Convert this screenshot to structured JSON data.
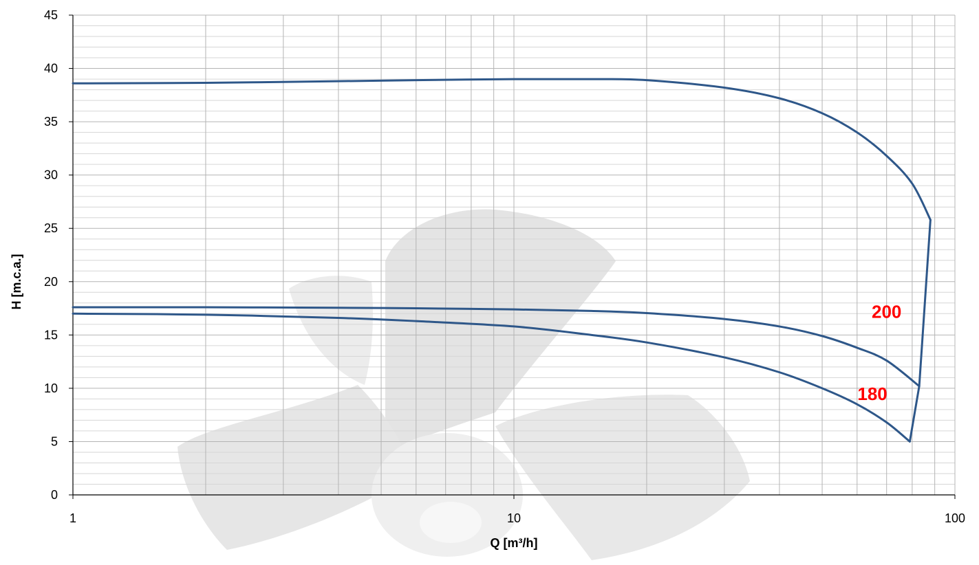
{
  "colors": {
    "series": "#2e5789",
    "curve_label": "#ff0000",
    "minor_grid": "#d6d6d6",
    "major_grid": "#b4b4b4",
    "axis": "#000000",
    "watermark": "#e9e9e9"
  },
  "watermark": {
    "description_icon": "fan-impeller-icon"
  },
  "chart_data": {
    "type": "line",
    "title": "",
    "xlabel": "Q [m³/h]",
    "ylabel": "H [m.c.a.]",
    "xscale": "log",
    "xlim": [
      1,
      100
    ],
    "ylim": [
      0,
      45
    ],
    "x_ticks": [
      1,
      10,
      100
    ],
    "x_tick_labels": [
      "1",
      "10",
      "100"
    ],
    "y_ticks": [
      0,
      5,
      10,
      15,
      20,
      25,
      30,
      35,
      40,
      45
    ],
    "y_tick_labels": [
      "0",
      "5",
      "10",
      "15",
      "20",
      "25",
      "30",
      "35",
      "40",
      "45"
    ],
    "y_minor_step": 1,
    "grid": true,
    "legend": "none",
    "series": [
      {
        "x": [
          1,
          2,
          4,
          6,
          10,
          15,
          20,
          30,
          40,
          50,
          60,
          70,
          80,
          88
        ],
        "y": [
          38.6,
          38.65,
          38.8,
          38.9,
          39.0,
          39.0,
          38.9,
          38.2,
          37.2,
          35.8,
          34.0,
          31.8,
          29.2,
          25.8
        ]
      },
      {
        "x": [
          1,
          2,
          4,
          6,
          10,
          15,
          20,
          30,
          40,
          50,
          60,
          70,
          83
        ],
        "y": [
          17.6,
          17.6,
          17.55,
          17.5,
          17.4,
          17.25,
          17.05,
          16.5,
          15.8,
          14.9,
          13.8,
          12.6,
          10.2
        ]
      },
      {
        "x": [
          1,
          2,
          4,
          6,
          10,
          15,
          20,
          30,
          40,
          50,
          60,
          70,
          79
        ],
        "y": [
          17.0,
          16.9,
          16.6,
          16.3,
          15.8,
          15.0,
          14.3,
          12.9,
          11.5,
          10.0,
          8.5,
          6.8,
          5.0
        ]
      }
    ],
    "connector": {
      "x": [
        79,
        83,
        88
      ],
      "y": [
        5.0,
        10.2,
        25.8
      ]
    },
    "annotations": [
      {
        "text": "200",
        "x": 70,
        "y": 16.6
      },
      {
        "text": "180",
        "x": 65,
        "y": 8.9
      }
    ]
  }
}
